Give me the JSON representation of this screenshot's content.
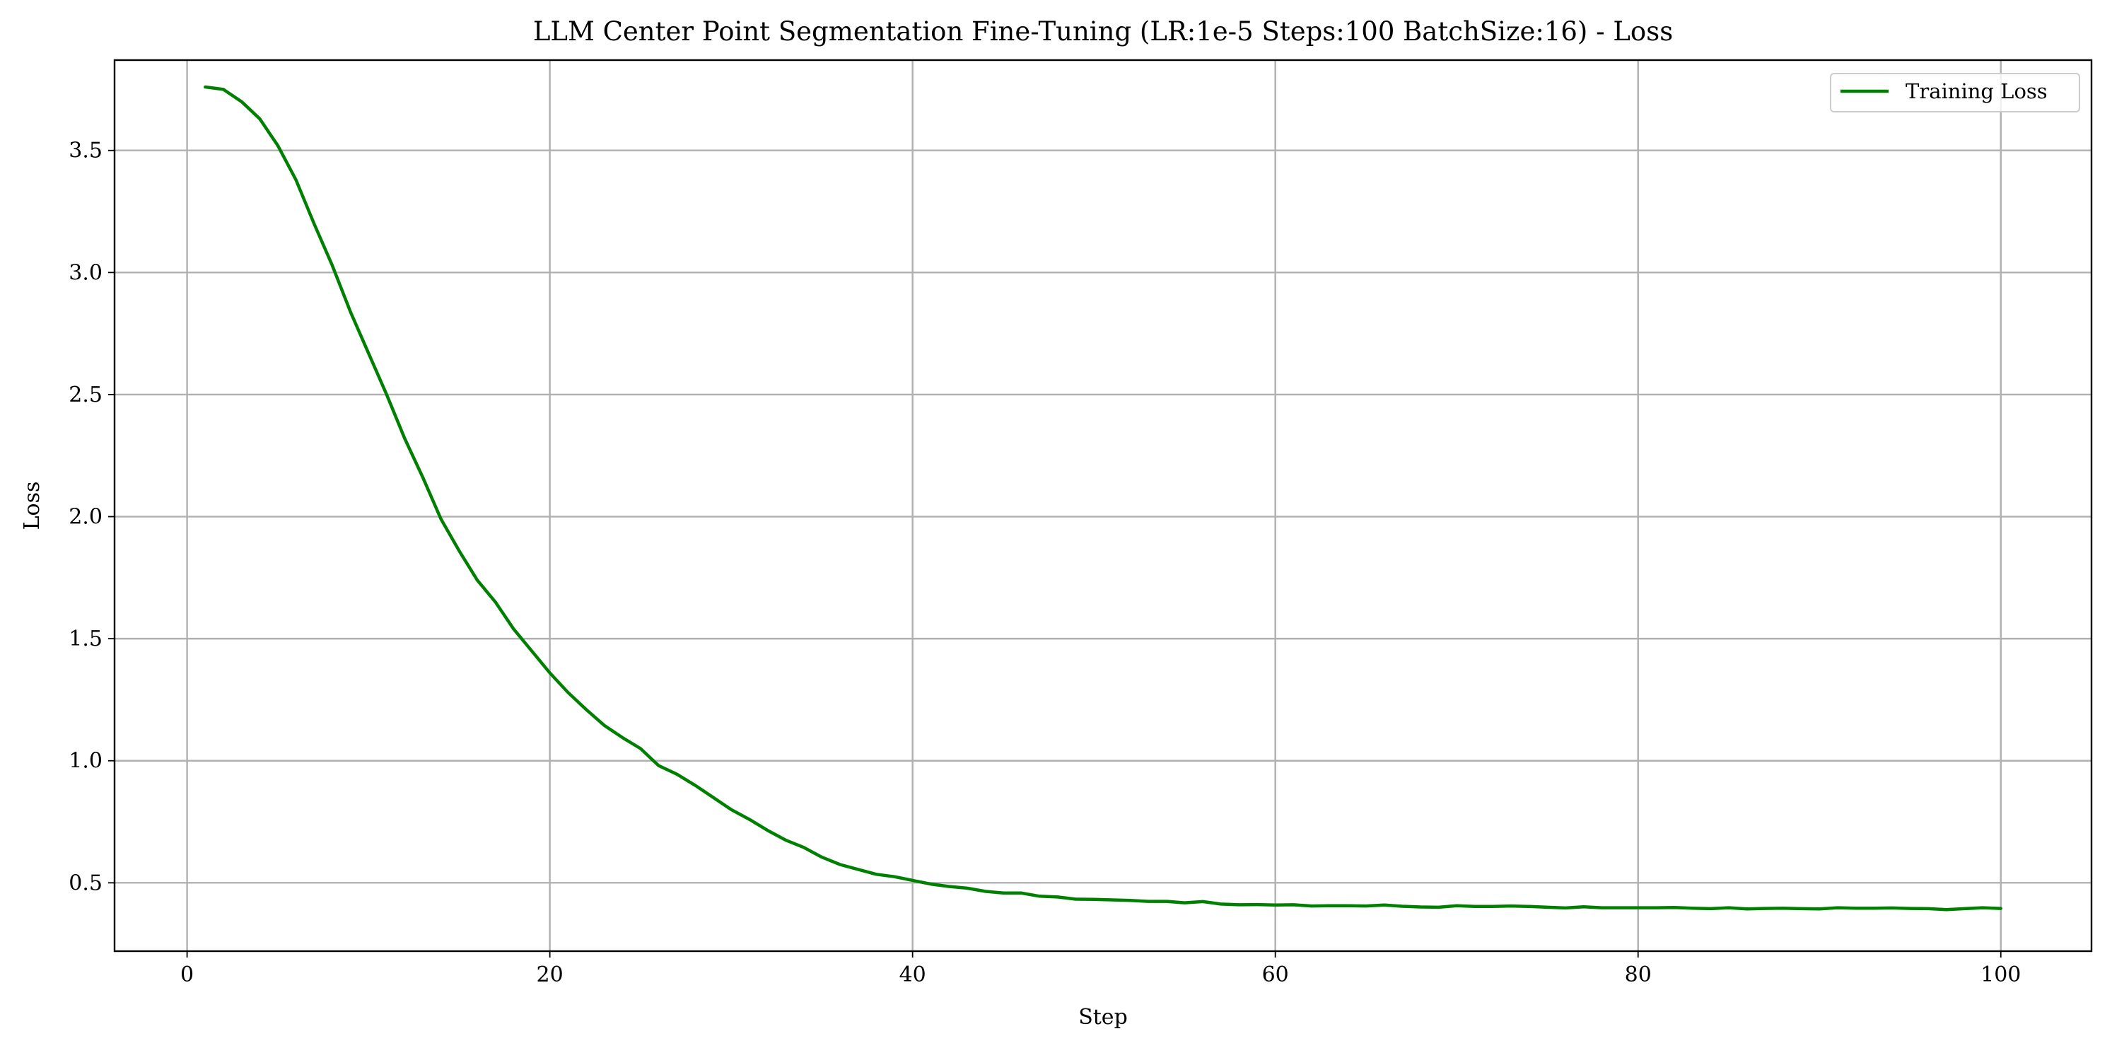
{
  "chart_data": {
    "type": "line",
    "title": "LLM Center Point Segmentation Fine-Tuning (LR:1e-5 Steps:100 BatchSize:16) - Loss",
    "xlabel": "Step",
    "ylabel": "Loss",
    "xlim": [
      -4,
      105
    ],
    "ylim": [
      0.22,
      3.87
    ],
    "xticks": [
      0,
      20,
      40,
      60,
      80,
      100
    ],
    "yticks": [
      0.5,
      1.0,
      1.5,
      2.0,
      2.5,
      3.0,
      3.5
    ],
    "xtick_labels": [
      "0",
      "20",
      "40",
      "60",
      "80",
      "100"
    ],
    "ytick_labels": [
      "0.5",
      "1.0",
      "1.5",
      "2.0",
      "2.5",
      "3.0",
      "3.5"
    ],
    "grid": true,
    "legend_position": "top-right",
    "series": [
      {
        "name": "Training Loss",
        "color": "#008000",
        "x": [
          1,
          2,
          3,
          4,
          5,
          6,
          7,
          8,
          9,
          10,
          11,
          12,
          13,
          14,
          15,
          16,
          17,
          18,
          19,
          20,
          21,
          22,
          23,
          24,
          25,
          26,
          27,
          28,
          29,
          30,
          31,
          32,
          33,
          34,
          35,
          36,
          37,
          38,
          39,
          40,
          41,
          42,
          43,
          44,
          45,
          46,
          47,
          48,
          49,
          50,
          51,
          52,
          53,
          54,
          55,
          56,
          57,
          58,
          59,
          60,
          61,
          62,
          63,
          64,
          65,
          66,
          67,
          68,
          69,
          70,
          71,
          72,
          73,
          74,
          75,
          76,
          77,
          78,
          79,
          80,
          81,
          82,
          83,
          84,
          85,
          86,
          87,
          88,
          89,
          90,
          91,
          92,
          93,
          94,
          95,
          96,
          97,
          98,
          99,
          100
        ],
        "y": [
          3.76,
          3.75,
          3.7,
          3.63,
          3.52,
          3.38,
          3.2,
          3.03,
          2.84,
          2.67,
          2.5,
          2.32,
          2.16,
          1.99,
          1.86,
          1.74,
          1.65,
          1.54,
          1.45,
          1.36,
          1.28,
          1.21,
          1.145,
          1.095,
          1.05,
          0.98,
          0.945,
          0.9,
          0.85,
          0.8,
          0.76,
          0.715,
          0.675,
          0.645,
          0.605,
          0.575,
          0.555,
          0.535,
          0.525,
          0.51,
          0.495,
          0.485,
          0.478,
          0.465,
          0.458,
          0.458,
          0.445,
          0.442,
          0.433,
          0.432,
          0.43,
          0.428,
          0.424,
          0.424,
          0.418,
          0.423,
          0.413,
          0.41,
          0.411,
          0.409,
          0.41,
          0.405,
          0.406,
          0.406,
          0.405,
          0.409,
          0.404,
          0.401,
          0.4,
          0.406,
          0.403,
          0.403,
          0.405,
          0.403,
          0.4,
          0.397,
          0.402,
          0.398,
          0.398,
          0.398,
          0.398,
          0.399,
          0.396,
          0.394,
          0.398,
          0.393,
          0.395,
          0.396,
          0.394,
          0.393,
          0.398,
          0.396,
          0.396,
          0.397,
          0.395,
          0.394,
          0.39,
          0.394,
          0.398,
          0.395
        ]
      }
    ]
  }
}
